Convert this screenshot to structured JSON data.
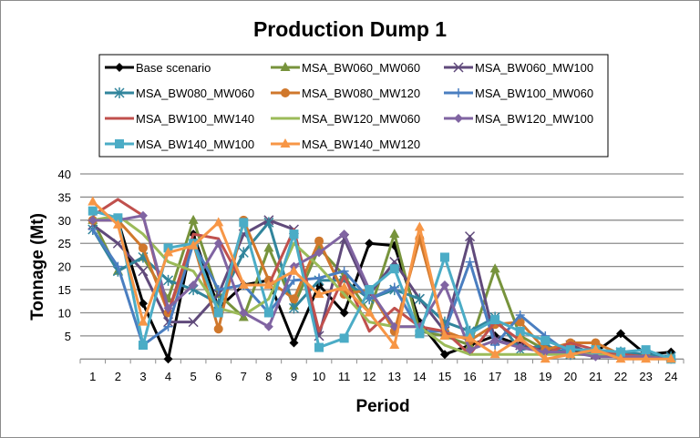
{
  "chart_data": {
    "type": "line",
    "title": "Production Dump 1",
    "xlabel": "Period",
    "ylabel": "Tonnage (Mt)",
    "ylim": [
      0,
      40
    ],
    "yticks": [
      "5",
      "10",
      "15",
      "20",
      "25",
      "30",
      "35",
      "40"
    ],
    "grid": true,
    "legend_placement": "top",
    "categories": [
      "1",
      "2",
      "3",
      "4",
      "5",
      "6",
      "7",
      "8",
      "9",
      "10",
      "11",
      "12",
      "13",
      "14",
      "15",
      "16",
      "17",
      "18",
      "19",
      "20",
      "21",
      "22",
      "23",
      "24"
    ],
    "series": [
      {
        "name": "Base scenario",
        "color": "#000000",
        "marker": "diamond",
        "values": [
          30,
          30,
          12,
          0,
          27,
          11,
          16,
          17,
          3.5,
          16,
          10,
          25,
          24.5,
          8,
          1,
          3,
          5,
          3,
          2,
          1.5,
          1.5,
          5.5,
          1,
          1.5
        ]
      },
      {
        "name": "MSA_BW060_MW060",
        "color": "#77933C",
        "marker": "triangle",
        "values": [
          30,
          19,
          22,
          13,
          30,
          14,
          9,
          24,
          11.5,
          24,
          18,
          10,
          27,
          6,
          5,
          3,
          19.5,
          5,
          2,
          1,
          1,
          1,
          1,
          0.5
        ]
      },
      {
        "name": "MSA_BW060_MW100",
        "color": "#604A7B",
        "marker": "x",
        "values": [
          29,
          25,
          19,
          8,
          8,
          14,
          27,
          30,
          28,
          5,
          26,
          14,
          21,
          13,
          6,
          26.5,
          4,
          3,
          2,
          3,
          1,
          1,
          1,
          0.5
        ]
      },
      {
        "name": "MSA_BW080_MW060",
        "color": "#31859C",
        "marker": "asterisk",
        "values": [
          28,
          19,
          22,
          17,
          15,
          12,
          23,
          29.5,
          11,
          17,
          17,
          13,
          15,
          13,
          8,
          6,
          9,
          2,
          3,
          1,
          1.5,
          1.5,
          1,
          0.5
        ]
      },
      {
        "name": "MSA_BW080_MW120",
        "color": "#D0782C",
        "marker": "circle",
        "values": [
          30,
          30,
          24,
          10,
          25,
          6.5,
          30,
          17,
          13,
          25.5,
          14,
          15,
          6,
          26,
          6,
          4,
          7.5,
          8,
          2,
          3.5,
          3.5,
          1,
          0.5,
          0
        ]
      },
      {
        "name": "MSA_BW100_MW060",
        "color": "#4A7EC0",
        "marker": "plus",
        "values": [
          28,
          20,
          3,
          7,
          25,
          15,
          16,
          10,
          17,
          17.5,
          19,
          13,
          15.5,
          6,
          6,
          21,
          3,
          9.5,
          5,
          1,
          1,
          1,
          0.5,
          0
        ]
      },
      {
        "name": "MSA_BW100_MW140",
        "color": "#C0504D",
        "marker": "none",
        "values": [
          31,
          34.5,
          31,
          10,
          27,
          26,
          16,
          16,
          28,
          6,
          18,
          6,
          11,
          7,
          6,
          1,
          8,
          4,
          1,
          3.5,
          2,
          1,
          0.5,
          0
        ]
      },
      {
        "name": "MSA_BW120_MW060",
        "color": "#9BBB59",
        "marker": "none",
        "values": [
          30,
          31,
          27,
          21,
          19,
          11,
          9.5,
          13,
          25,
          20,
          14,
          8,
          7,
          7,
          3,
          1,
          1,
          1,
          1,
          1,
          1,
          0.5,
          0.5,
          0
        ]
      },
      {
        "name": "MSA_BW120_MW100",
        "color": "#8064A2",
        "marker": "diamond",
        "values": [
          30,
          30,
          31,
          11,
          16,
          25,
          10,
          7,
          20,
          23,
          27,
          15,
          7,
          7,
          16,
          2,
          4,
          2.5,
          1.5,
          1.5,
          0.5,
          0.5,
          0.5,
          0
        ]
      },
      {
        "name": "MSA_BW140_MW100",
        "color": "#4BACC6",
        "marker": "square",
        "values": [
          32,
          30.5,
          3,
          24,
          25,
          10,
          29.5,
          10,
          27,
          2.5,
          4.5,
          15,
          19.5,
          5.5,
          22,
          5.5,
          8.5,
          6,
          4,
          2,
          2,
          1.5,
          2,
          0
        ]
      },
      {
        "name": "MSA_BW140_MW120",
        "color": "#F79646",
        "marker": "triangle",
        "values": [
          34,
          29,
          8,
          23,
          24.5,
          29.5,
          16,
          16,
          19,
          14,
          15.5,
          10,
          3,
          28.5,
          5,
          4.5,
          1,
          4.5,
          0,
          1,
          2,
          0,
          0,
          0
        ]
      }
    ]
  }
}
